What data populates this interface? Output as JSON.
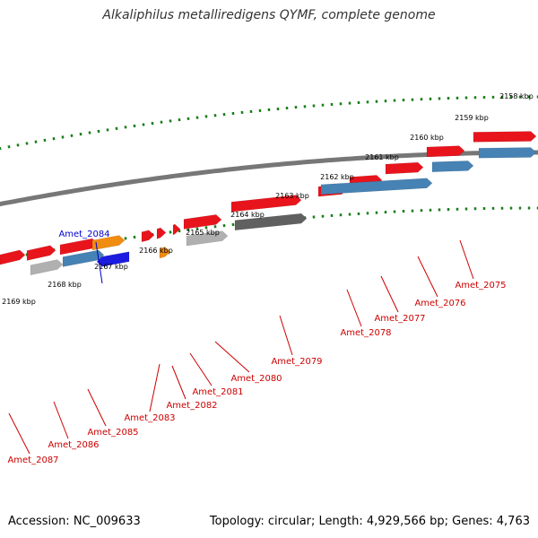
{
  "title": "Alkaliphilus metalliredigens QYMF, complete genome",
  "footer": {
    "accession": "Accession: NC_009633",
    "summary": "Topology: circular; Length: 4,929,566 bp; Genes: 4,763"
  },
  "colors": {
    "backbone": "#777777",
    "tick": "#1a7f1a",
    "gene_red": "#e8141c",
    "gene_orange": "#f08c10",
    "gene_blue": "#1c1ce0",
    "gene_steel": "#4682b4",
    "gene_gray": "#b0b0b0",
    "gene_darkgray": "#606060",
    "label_red": "#cc0000",
    "label_blue": "#0000cc"
  },
  "scale_labels": [
    "2158 kbp",
    "2159 kbp",
    "2160 kbp",
    "2161 kbp",
    "2162 kbp",
    "2163 kbp",
    "2164 kbp",
    "2165 kbp",
    "2166 kbp",
    "2167 kbp",
    "2168 kbp",
    "2169 kbp"
  ],
  "gene_labels": [
    {
      "text": "Amet_2075",
      "color": "red"
    },
    {
      "text": "Amet_2076",
      "color": "red"
    },
    {
      "text": "Amet_2077",
      "color": "red"
    },
    {
      "text": "Amet_2078",
      "color": "red"
    },
    {
      "text": "Amet_2079",
      "color": "red"
    },
    {
      "text": "Amet_2080",
      "color": "red"
    },
    {
      "text": "Amet_2081",
      "color": "red"
    },
    {
      "text": "Amet_2082",
      "color": "red"
    },
    {
      "text": "Amet_2083",
      "color": "red"
    },
    {
      "text": "Amet_2084",
      "color": "blue"
    },
    {
      "text": "Amet_2085",
      "color": "red"
    },
    {
      "text": "Amet_2086",
      "color": "red"
    },
    {
      "text": "Amet_2087",
      "color": "red"
    }
  ]
}
